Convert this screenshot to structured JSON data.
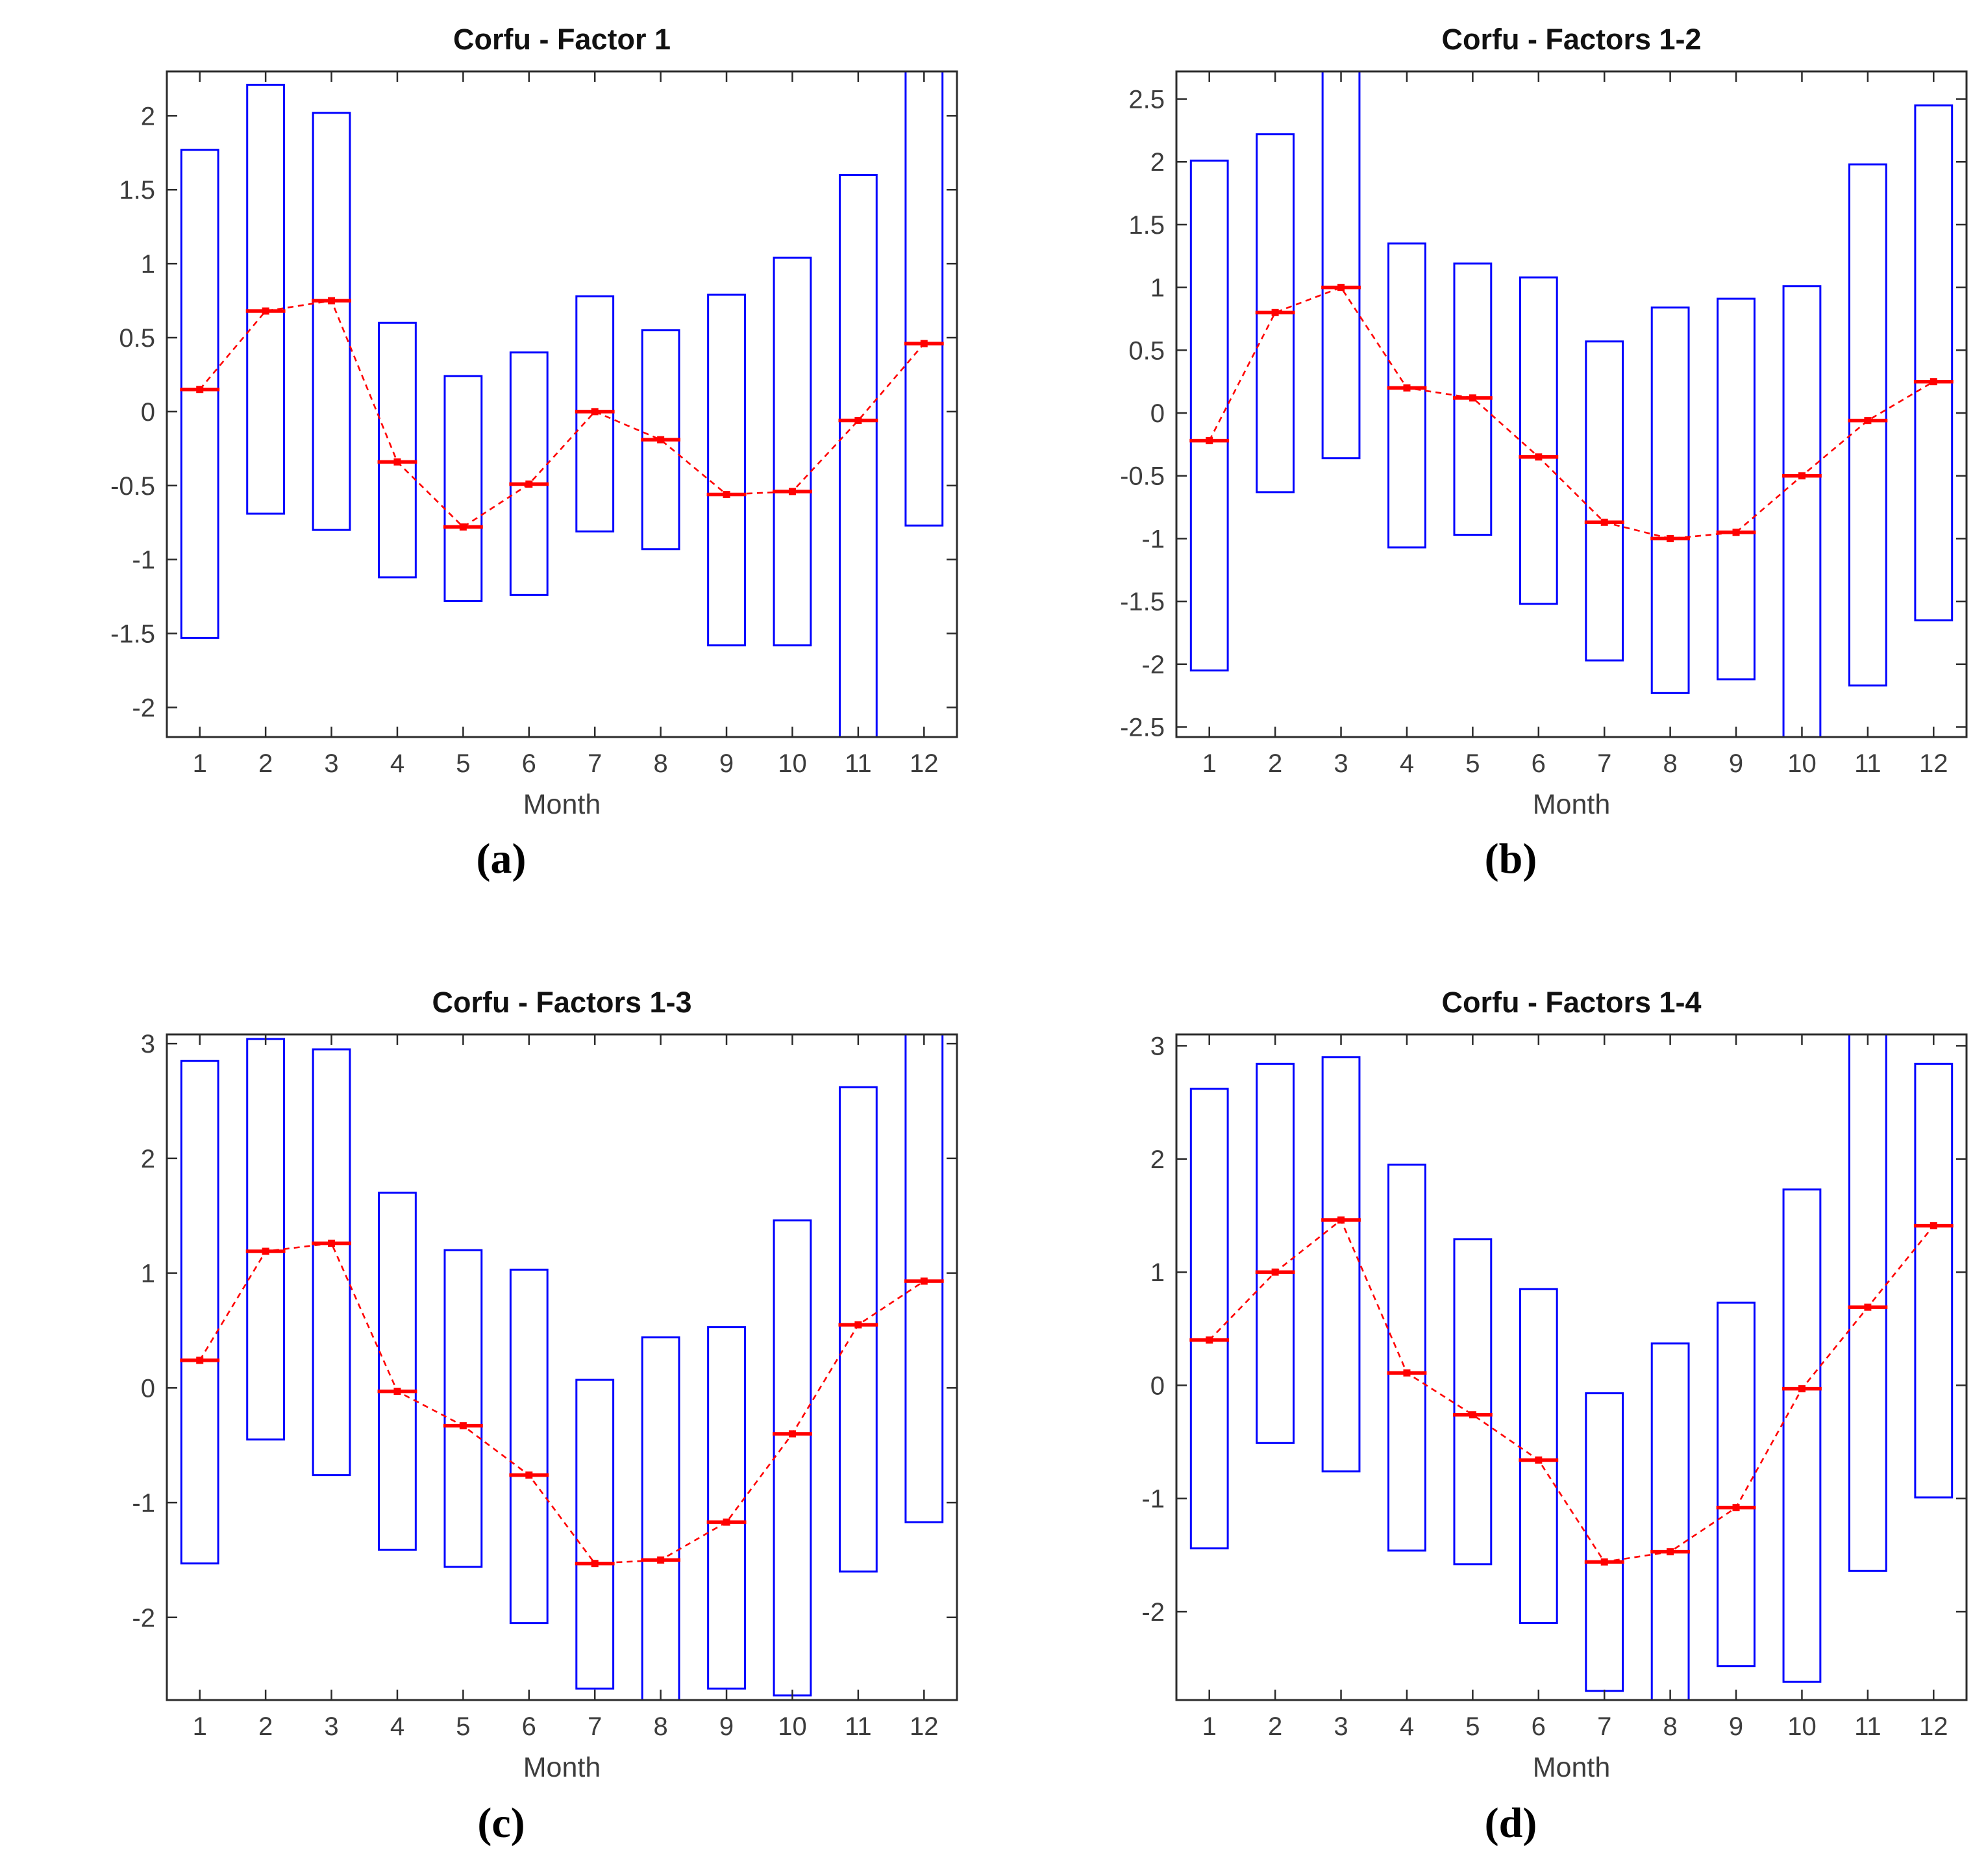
{
  "page_background": "#ffffff",
  "captions": [
    "(a)",
    "(b)",
    "(c)",
    "(d)"
  ],
  "colors": {
    "box_outline": "#0000ff",
    "mean_line": "#ff0000",
    "axis_frame": "#2b2b2b",
    "tick_label": "#3d3d3d",
    "axis_label": "#3d3d3d",
    "title": "#111111"
  },
  "chart_data": [
    {
      "type": "range-bar+line",
      "title": "Corfu - Factor 1",
      "xlabel": "Month",
      "categories": [
        1,
        2,
        3,
        4,
        5,
        6,
        7,
        8,
        9,
        10,
        11,
        12
      ],
      "series": [
        {
          "name": "factor-score-range",
          "role": "box",
          "high": [
            1.77,
            2.21,
            2.02,
            0.6,
            0.24,
            0.4,
            0.78,
            0.55,
            0.79,
            1.04,
            1.6,
            2.45
          ],
          "low": [
            -1.53,
            -0.69,
            -0.8,
            -1.12,
            -1.28,
            -1.24,
            -0.81,
            -0.93,
            -1.58,
            -1.58,
            -2.35,
            -0.77
          ]
        },
        {
          "name": "monthly-mean",
          "role": "line",
          "values": [
            0.15,
            0.68,
            0.75,
            -0.34,
            -0.78,
            -0.49,
            0.0,
            -0.19,
            -0.56,
            -0.54,
            -0.06,
            0.46
          ]
        }
      ],
      "ylim": [
        -2.2,
        2.3
      ],
      "yticks": [
        -2,
        -1.5,
        -1,
        -0.5,
        0,
        0.5,
        1,
        1.5,
        2
      ],
      "grid": false,
      "legend": "none"
    },
    {
      "type": "range-bar+line",
      "title": "Corfu - Factors 1-2",
      "xlabel": "Month",
      "categories": [
        1,
        2,
        3,
        4,
        5,
        6,
        7,
        8,
        9,
        10,
        11,
        12
      ],
      "series": [
        {
          "name": "factor-score-range",
          "role": "box",
          "high": [
            2.01,
            2.22,
            2.85,
            1.35,
            1.19,
            1.08,
            0.57,
            0.84,
            0.91,
            1.01,
            1.98,
            2.45
          ],
          "low": [
            -2.05,
            -0.63,
            -0.36,
            -1.07,
            -0.97,
            -1.52,
            -1.97,
            -2.23,
            -2.12,
            -2.75,
            -2.17,
            -1.65
          ]
        },
        {
          "name": "monthly-mean",
          "role": "line",
          "values": [
            -0.22,
            0.8,
            1.0,
            0.2,
            0.12,
            -0.35,
            -0.87,
            -1.0,
            -0.95,
            -0.5,
            -0.06,
            0.25
          ]
        }
      ],
      "ylim": [
        -2.58,
        2.72
      ],
      "yticks": [
        -2.5,
        -2,
        -1.5,
        -1,
        -0.5,
        0,
        0.5,
        1,
        1.5,
        2,
        2.5
      ],
      "grid": false,
      "legend": "none"
    },
    {
      "type": "range-bar+line",
      "title": "Corfu - Factors 1-3",
      "xlabel": "Month",
      "categories": [
        1,
        2,
        3,
        4,
        5,
        6,
        7,
        8,
        9,
        10,
        11,
        12
      ],
      "series": [
        {
          "name": "factor-score-range",
          "role": "box",
          "high": [
            2.85,
            3.04,
            2.95,
            1.7,
            1.2,
            1.03,
            0.07,
            0.44,
            0.53,
            1.46,
            2.62,
            3.25
          ],
          "low": [
            -1.53,
            -0.45,
            -0.76,
            -1.41,
            -1.56,
            -2.05,
            -2.62,
            -2.85,
            -2.62,
            -2.68,
            -1.6,
            -1.17
          ]
        },
        {
          "name": "monthly-mean",
          "role": "line",
          "values": [
            0.24,
            1.19,
            1.26,
            -0.03,
            -0.33,
            -0.76,
            -1.53,
            -1.5,
            -1.17,
            -0.4,
            0.55,
            0.93
          ]
        }
      ],
      "ylim": [
        -2.72,
        3.08
      ],
      "yticks": [
        -2,
        -1,
        0,
        1,
        2,
        3
      ],
      "grid": false,
      "legend": "none"
    },
    {
      "type": "range-bar+line",
      "title": "Corfu - Factors 1-4",
      "xlabel": "Month",
      "categories": [
        1,
        2,
        3,
        4,
        5,
        6,
        7,
        8,
        9,
        10,
        11,
        12
      ],
      "series": [
        {
          "name": "factor-score-range",
          "role": "box",
          "high": [
            2.62,
            2.84,
            2.9,
            1.95,
            1.29,
            0.85,
            -0.07,
            0.37,
            0.73,
            1.73,
            3.25,
            2.84
          ],
          "low": [
            -1.44,
            -0.51,
            -0.76,
            -1.46,
            -1.58,
            -2.1,
            -2.7,
            -2.95,
            -2.48,
            -2.62,
            -1.64,
            -0.99
          ]
        },
        {
          "name": "monthly-mean",
          "role": "line",
          "values": [
            0.4,
            1.0,
            1.46,
            0.11,
            -0.26,
            -0.66,
            -1.56,
            -1.47,
            -1.08,
            -0.03,
            0.69,
            1.41
          ]
        }
      ],
      "ylim": [
        -2.78,
        3.1
      ],
      "yticks": [
        -2,
        -1,
        0,
        1,
        2,
        3
      ],
      "grid": false,
      "legend": "none"
    }
  ]
}
